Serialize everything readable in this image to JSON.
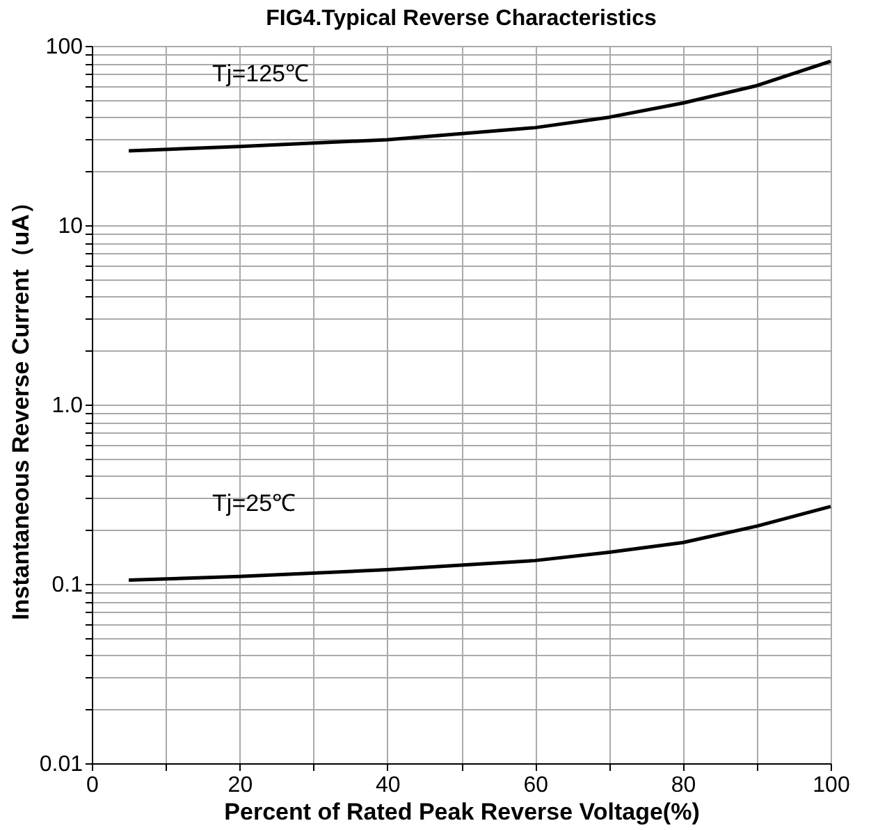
{
  "chart_data": {
    "type": "line",
    "title": "FIG4.Typical Reverse Characteristics",
    "xlabel": "Percent of Rated Peak Reverse Voltage(%)",
    "ylabel": "Instantaneous Reverse Current（uA）",
    "log": true,
    "grid": true,
    "marker": "none",
    "line_style": "solid",
    "x": [
      5,
      20,
      40,
      60,
      70,
      80,
      90,
      100
    ],
    "series": [
      {
        "color": "#000000",
        "values": [
          26,
          27.5,
          30,
          35,
          40,
          48,
          60,
          82
        ]
      },
      {
        "color": "#000000",
        "values": [
          0.105,
          0.11,
          0.12,
          0.135,
          0.15,
          0.17,
          0.21,
          0.27
        ]
      }
    ],
    "annotations": [
      "Tj=125℃",
      "Tj=25℃"
    ],
    "xlim": [
      0,
      100
    ],
    "xticks": [
      0,
      {
        "value": 10,
        "label": null
      },
      20,
      {
        "value": 30,
        "label": null
      },
      40,
      {
        "value": 50,
        "label": null
      },
      60,
      {
        "value": 70,
        "label": null
      },
      80,
      {
        "value": 90,
        "label": null
      },
      100
    ],
    "ylim": [
      0.01,
      100
    ],
    "yticks": [
      0.01,
      {
        "value": 0.02,
        "label": null
      },
      {
        "value": 0.03,
        "label": null
      },
      {
        "value": 0.04,
        "label": null
      },
      {
        "value": 0.05,
        "label": null
      },
      {
        "value": 0.06,
        "label": null
      },
      {
        "value": 0.07,
        "label": null
      },
      {
        "value": 0.08,
        "label": null
      },
      {
        "value": 0.09,
        "label": null
      },
      0.1,
      {
        "value": 0.2,
        "label": null
      },
      {
        "value": 0.3,
        "label": null
      },
      {
        "value": 0.4,
        "label": null
      },
      {
        "value": 0.5,
        "label": null
      },
      {
        "value": 0.6,
        "label": null
      },
      {
        "value": 0.7,
        "label": null
      },
      {
        "value": 0.8,
        "label": null
      },
      {
        "value": 0.9,
        "label": null
      },
      {
        "value": 1,
        "label": "1.0"
      },
      {
        "value": 2,
        "label": null
      },
      {
        "value": 3,
        "label": null
      },
      {
        "value": 4,
        "label": null
      },
      {
        "value": 5,
        "label": null
      },
      {
        "value": 6,
        "label": null
      },
      {
        "value": 7,
        "label": null
      },
      {
        "value": 8,
        "label": null
      },
      {
        "value": 9,
        "label": null
      },
      10,
      {
        "value": 20,
        "label": null
      },
      {
        "value": 30,
        "label": null
      },
      {
        "value": 40,
        "label": null
      },
      {
        "value": 50,
        "label": null
      },
      {
        "value": 60,
        "label": null
      },
      {
        "value": 70,
        "label": null
      },
      {
        "value": 80,
        "label": null
      },
      {
        "value": 90,
        "label": null
      },
      100
    ]
  }
}
